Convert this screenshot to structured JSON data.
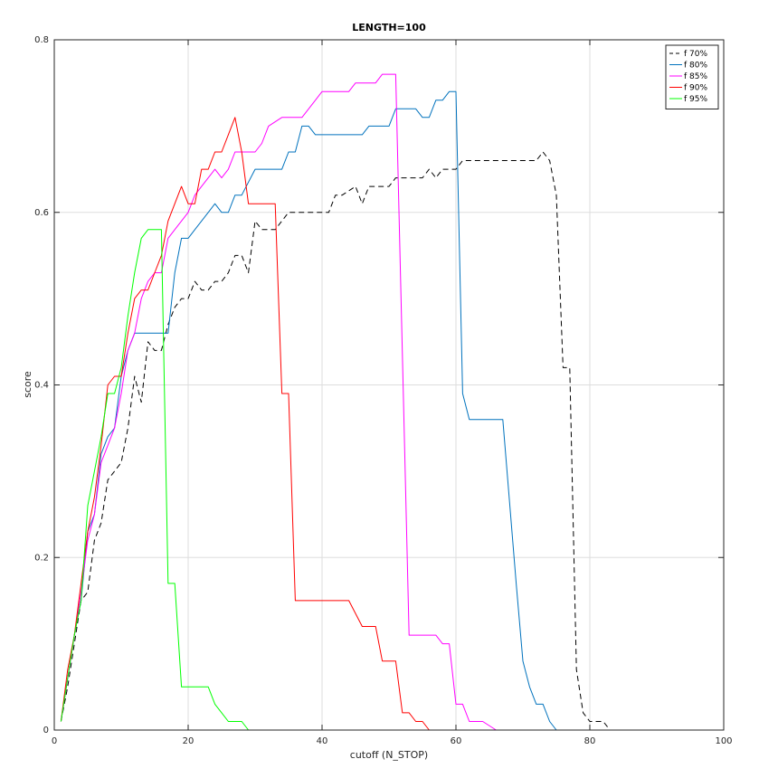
{
  "chart_data": {
    "type": "line",
    "title": "LENGTH=100",
    "xlabel": "cutoff (N_STOP)",
    "ylabel": "score",
    "xlim": [
      0,
      100
    ],
    "ylim": [
      0,
      0.8
    ],
    "xticks": [
      0,
      20,
      40,
      60,
      80,
      100
    ],
    "yticks": [
      0,
      0.2,
      0.4,
      0.6,
      0.8
    ],
    "xtick_labels": [
      "0",
      "20",
      "40",
      "60",
      "80",
      "100"
    ],
    "ytick_labels": [
      "0",
      "0.2",
      "0.4",
      "0.6",
      "0.8"
    ],
    "grid": true,
    "legend_position": "top-right",
    "series": [
      {
        "name": "f 70%",
        "color": "#000000",
        "dashed": true,
        "points": [
          [
            1,
            0.01
          ],
          [
            2,
            0.05
          ],
          [
            3,
            0.1
          ],
          [
            4,
            0.15
          ],
          [
            5,
            0.16
          ],
          [
            6,
            0.22
          ],
          [
            7,
            0.24
          ],
          [
            8,
            0.29
          ],
          [
            9,
            0.3
          ],
          [
            10,
            0.31
          ],
          [
            11,
            0.35
          ],
          [
            12,
            0.41
          ],
          [
            13,
            0.38
          ],
          [
            14,
            0.45
          ],
          [
            15,
            0.44
          ],
          [
            16,
            0.44
          ],
          [
            17,
            0.47
          ],
          [
            18,
            0.49
          ],
          [
            19,
            0.5
          ],
          [
            20,
            0.5
          ],
          [
            21,
            0.52
          ],
          [
            22,
            0.51
          ],
          [
            23,
            0.51
          ],
          [
            24,
            0.52
          ],
          [
            25,
            0.52
          ],
          [
            26,
            0.53
          ],
          [
            27,
            0.55
          ],
          [
            28,
            0.55
          ],
          [
            29,
            0.53
          ],
          [
            30,
            0.59
          ],
          [
            31,
            0.58
          ],
          [
            32,
            0.58
          ],
          [
            33,
            0.58
          ],
          [
            35,
            0.6
          ],
          [
            36,
            0.6
          ],
          [
            41,
            0.6
          ],
          [
            42,
            0.62
          ],
          [
            43,
            0.62
          ],
          [
            45,
            0.63
          ],
          [
            46,
            0.61
          ],
          [
            47,
            0.63
          ],
          [
            50,
            0.63
          ],
          [
            51,
            0.64
          ],
          [
            55,
            0.64
          ],
          [
            56,
            0.65
          ],
          [
            57,
            0.64
          ],
          [
            58,
            0.65
          ],
          [
            60,
            0.65
          ],
          [
            61,
            0.66
          ],
          [
            72,
            0.66
          ],
          [
            73,
            0.67
          ],
          [
            74,
            0.66
          ],
          [
            75,
            0.62
          ],
          [
            76,
            0.42
          ],
          [
            77,
            0.42
          ],
          [
            78,
            0.07
          ],
          [
            79,
            0.02
          ],
          [
            80,
            0.01
          ],
          [
            81,
            0.01
          ],
          [
            82,
            0.01
          ],
          [
            83,
            0
          ],
          [
            100,
            0
          ]
        ]
      },
      {
        "name": "f 80%",
        "color": "#0072bd",
        "dashed": false,
        "points": [
          [
            1,
            0.01
          ],
          [
            2,
            0.06
          ],
          [
            3,
            0.11
          ],
          [
            4,
            0.15
          ],
          [
            5,
            0.23
          ],
          [
            6,
            0.25
          ],
          [
            7,
            0.32
          ],
          [
            8,
            0.34
          ],
          [
            9,
            0.35
          ],
          [
            10,
            0.41
          ],
          [
            11,
            0.44
          ],
          [
            12,
            0.46
          ],
          [
            17,
            0.46
          ],
          [
            18,
            0.53
          ],
          [
            19,
            0.57
          ],
          [
            20,
            0.57
          ],
          [
            21,
            0.58
          ],
          [
            23,
            0.6
          ],
          [
            24,
            0.61
          ],
          [
            25,
            0.6
          ],
          [
            26,
            0.6
          ],
          [
            27,
            0.62
          ],
          [
            28,
            0.62
          ],
          [
            30,
            0.65
          ],
          [
            34,
            0.65
          ],
          [
            35,
            0.67
          ],
          [
            36,
            0.67
          ],
          [
            37,
            0.7
          ],
          [
            38,
            0.7
          ],
          [
            39,
            0.69
          ],
          [
            46,
            0.69
          ],
          [
            47,
            0.7
          ],
          [
            50,
            0.7
          ],
          [
            51,
            0.72
          ],
          [
            54,
            0.72
          ],
          [
            55,
            0.71
          ],
          [
            56,
            0.71
          ],
          [
            57,
            0.73
          ],
          [
            58,
            0.73
          ],
          [
            59,
            0.74
          ],
          [
            60,
            0.74
          ],
          [
            61,
            0.39
          ],
          [
            62,
            0.36
          ],
          [
            67,
            0.36
          ],
          [
            69,
            0.17
          ],
          [
            70,
            0.08
          ],
          [
            71,
            0.05
          ],
          [
            72,
            0.03
          ],
          [
            73,
            0.03
          ],
          [
            74,
            0.01
          ],
          [
            75,
            0
          ],
          [
            100,
            0
          ]
        ]
      },
      {
        "name": "f 85%",
        "color": "#ff00ff",
        "dashed": false,
        "points": [
          [
            1,
            0.01
          ],
          [
            2,
            0.06
          ],
          [
            3,
            0.11
          ],
          [
            4,
            0.16
          ],
          [
            5,
            0.22
          ],
          [
            6,
            0.25
          ],
          [
            7,
            0.31
          ],
          [
            8,
            0.33
          ],
          [
            9,
            0.35
          ],
          [
            10,
            0.39
          ],
          [
            11,
            0.44
          ],
          [
            12,
            0.46
          ],
          [
            13,
            0.5
          ],
          [
            14,
            0.52
          ],
          [
            15,
            0.53
          ],
          [
            16,
            0.53
          ],
          [
            17,
            0.57
          ],
          [
            18,
            0.58
          ],
          [
            19,
            0.59
          ],
          [
            20,
            0.6
          ],
          [
            21,
            0.62
          ],
          [
            22,
            0.63
          ],
          [
            23,
            0.64
          ],
          [
            24,
            0.65
          ],
          [
            25,
            0.64
          ],
          [
            26,
            0.65
          ],
          [
            27,
            0.67
          ],
          [
            28,
            0.67
          ],
          [
            30,
            0.67
          ],
          [
            31,
            0.68
          ],
          [
            32,
            0.7
          ],
          [
            34,
            0.71
          ],
          [
            37,
            0.71
          ],
          [
            38,
            0.72
          ],
          [
            39,
            0.73
          ],
          [
            40,
            0.74
          ],
          [
            44,
            0.74
          ],
          [
            45,
            0.75
          ],
          [
            48,
            0.75
          ],
          [
            49,
            0.76
          ],
          [
            51,
            0.76
          ],
          [
            53,
            0.11
          ],
          [
            57,
            0.11
          ],
          [
            58,
            0.1
          ],
          [
            59,
            0.1
          ],
          [
            60,
            0.03
          ],
          [
            61,
            0.03
          ],
          [
            62,
            0.01
          ],
          [
            64,
            0.01
          ],
          [
            66,
            0
          ],
          [
            100,
            0
          ]
        ]
      },
      {
        "name": "f 90%",
        "color": "#ff0000",
        "dashed": false,
        "points": [
          [
            1,
            0.01
          ],
          [
            2,
            0.07
          ],
          [
            3,
            0.11
          ],
          [
            4,
            0.17
          ],
          [
            5,
            0.23
          ],
          [
            6,
            0.27
          ],
          [
            7,
            0.33
          ],
          [
            8,
            0.4
          ],
          [
            9,
            0.41
          ],
          [
            10,
            0.41
          ],
          [
            11,
            0.46
          ],
          [
            12,
            0.5
          ],
          [
            13,
            0.51
          ],
          [
            14,
            0.51
          ],
          [
            15,
            0.53
          ],
          [
            16,
            0.55
          ],
          [
            17,
            0.59
          ],
          [
            18,
            0.61
          ],
          [
            19,
            0.63
          ],
          [
            20,
            0.61
          ],
          [
            21,
            0.61
          ],
          [
            22,
            0.65
          ],
          [
            23,
            0.65
          ],
          [
            24,
            0.67
          ],
          [
            25,
            0.67
          ],
          [
            26,
            0.69
          ],
          [
            27,
            0.71
          ],
          [
            28,
            0.67
          ],
          [
            29,
            0.61
          ],
          [
            33,
            0.61
          ],
          [
            34,
            0.39
          ],
          [
            35,
            0.39
          ],
          [
            36,
            0.15
          ],
          [
            44,
            0.15
          ],
          [
            46,
            0.12
          ],
          [
            48,
            0.12
          ],
          [
            49,
            0.08
          ],
          [
            51,
            0.08
          ],
          [
            52,
            0.02
          ],
          [
            53,
            0.02
          ],
          [
            54,
            0.01
          ],
          [
            55,
            0.01
          ],
          [
            56,
            0
          ],
          [
            100,
            0
          ]
        ]
      },
      {
        "name": "f 95%",
        "color": "#00ff00",
        "dashed": false,
        "points": [
          [
            1,
            0.01
          ],
          [
            2,
            0.06
          ],
          [
            3,
            0.11
          ],
          [
            4,
            0.15
          ],
          [
            5,
            0.26
          ],
          [
            6,
            0.3
          ],
          [
            7,
            0.34
          ],
          [
            8,
            0.39
          ],
          [
            9,
            0.39
          ],
          [
            10,
            0.42
          ],
          [
            11,
            0.48
          ],
          [
            12,
            0.53
          ],
          [
            13,
            0.57
          ],
          [
            14,
            0.58
          ],
          [
            16,
            0.58
          ],
          [
            17,
            0.17
          ],
          [
            18,
            0.17
          ],
          [
            19,
            0.05
          ],
          [
            23,
            0.05
          ],
          [
            24,
            0.03
          ],
          [
            25,
            0.02
          ],
          [
            26,
            0.01
          ],
          [
            28,
            0.01
          ],
          [
            29,
            0
          ],
          [
            100,
            0
          ]
        ]
      }
    ]
  }
}
